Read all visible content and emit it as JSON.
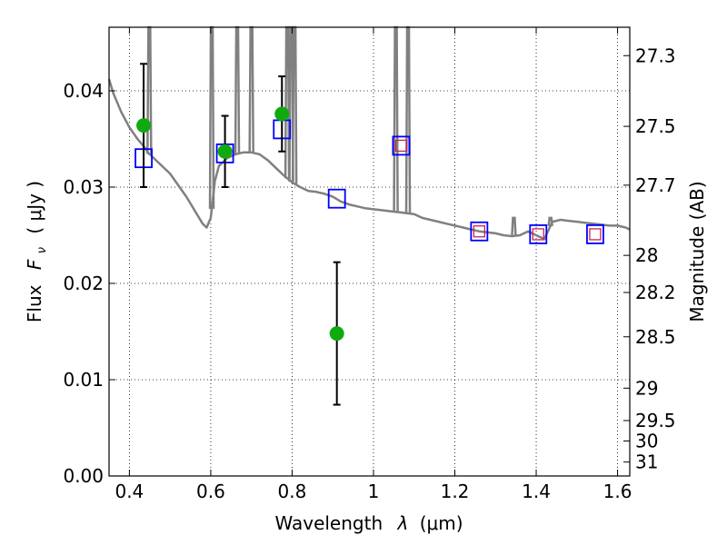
{
  "chart_data": {
    "type": "scatter",
    "xlabel_text": "Wavelength",
    "xlabel_symbol": "λ",
    "xlabel_unit": "(μm)",
    "ylabel_text": "Flux",
    "ylabel_symbol_main": "F",
    "ylabel_symbol_sub": "ν",
    "ylabel_unit": "( μJy )",
    "y2label": "Magnitude (AB)",
    "xlim": [
      0.35,
      1.63
    ],
    "ylim": [
      0.0,
      0.0466
    ],
    "grid": true,
    "xticks": [
      {
        "value": 0.4,
        "label": "0.4"
      },
      {
        "value": 0.6,
        "label": "0.6"
      },
      {
        "value": 0.8,
        "label": "0.8"
      },
      {
        "value": 1.0,
        "label": "1"
      },
      {
        "value": 1.2,
        "label": "1.2"
      },
      {
        "value": 1.4,
        "label": "1.4"
      },
      {
        "value": 1.6,
        "label": "1.6"
      }
    ],
    "yticks": [
      {
        "value": 0.0,
        "label": "0.00"
      },
      {
        "value": 0.01,
        "label": "0.01"
      },
      {
        "value": 0.02,
        "label": "0.02"
      },
      {
        "value": 0.03,
        "label": "0.03"
      },
      {
        "value": 0.04,
        "label": "0.04"
      }
    ],
    "y2ticks": [
      {
        "value": 27.3,
        "label": "27.3"
      },
      {
        "value": 27.5,
        "label": "27.5"
      },
      {
        "value": 27.7,
        "label": "27.7"
      },
      {
        "value": 28.0,
        "label": "28"
      },
      {
        "value": 28.2,
        "label": "28.2"
      },
      {
        "value": 28.5,
        "label": "28.5"
      },
      {
        "value": 29.0,
        "label": "29"
      },
      {
        "value": 29.5,
        "label": "29.5"
      },
      {
        "value": 30.0,
        "label": "30"
      },
      {
        "value": 31.0,
        "label": "31"
      }
    ],
    "colors": {
      "template": "#808080",
      "observed": "#10aa10",
      "model_box": "#0000ff",
      "model_inner": "#cc2255",
      "errorbar": "#000000"
    },
    "series": [
      {
        "kind": "line",
        "points": [
          [
            0.35,
            0.0412
          ],
          [
            0.36,
            0.0398
          ],
          [
            0.38,
            0.0378
          ],
          [
            0.4,
            0.0362
          ],
          [
            0.42,
            0.035
          ],
          [
            0.44,
            0.034
          ],
          [
            0.445,
            0.0336
          ],
          [
            0.45,
            0.0334
          ],
          [
            0.47,
            0.0326
          ],
          [
            0.5,
            0.0314
          ],
          [
            0.52,
            0.0302
          ],
          [
            0.54,
            0.029
          ],
          [
            0.56,
            0.0276
          ],
          [
            0.58,
            0.0262
          ],
          [
            0.59,
            0.0258
          ],
          [
            0.6,
            0.0268
          ],
          [
            0.61,
            0.0306
          ],
          [
            0.62,
            0.0322
          ],
          [
            0.64,
            0.033
          ],
          [
            0.66,
            0.0334
          ],
          [
            0.68,
            0.0336
          ],
          [
            0.7,
            0.0336
          ],
          [
            0.72,
            0.0334
          ],
          [
            0.74,
            0.0328
          ],
          [
            0.76,
            0.032
          ],
          [
            0.78,
            0.0312
          ],
          [
            0.8,
            0.0305
          ],
          [
            0.82,
            0.03
          ],
          [
            0.84,
            0.0296
          ],
          [
            0.86,
            0.0295
          ],
          [
            0.88,
            0.0293
          ],
          [
            0.9,
            0.029
          ],
          [
            0.92,
            0.0285
          ],
          [
            0.94,
            0.0282
          ],
          [
            0.96,
            0.028
          ],
          [
            0.98,
            0.0278
          ],
          [
            1.0,
            0.0277
          ],
          [
            1.02,
            0.0276
          ],
          [
            1.04,
            0.0275
          ],
          [
            1.06,
            0.0274
          ],
          [
            1.08,
            0.0273
          ],
          [
            1.1,
            0.0272
          ],
          [
            1.12,
            0.0268
          ],
          [
            1.14,
            0.0266
          ],
          [
            1.16,
            0.0264
          ],
          [
            1.18,
            0.0262
          ],
          [
            1.2,
            0.026
          ],
          [
            1.22,
            0.0258
          ],
          [
            1.24,
            0.0256
          ],
          [
            1.26,
            0.0254
          ],
          [
            1.28,
            0.0253
          ],
          [
            1.3,
            0.0252
          ],
          [
            1.32,
            0.025
          ],
          [
            1.34,
            0.0249
          ],
          [
            1.36,
            0.025
          ],
          [
            1.38,
            0.0254
          ],
          [
            1.4,
            0.025
          ],
          [
            1.42,
            0.0246
          ],
          [
            1.44,
            0.0264
          ],
          [
            1.46,
            0.0266
          ],
          [
            1.48,
            0.0265
          ],
          [
            1.5,
            0.0264
          ],
          [
            1.52,
            0.0263
          ],
          [
            1.54,
            0.0262
          ],
          [
            1.56,
            0.0261
          ],
          [
            1.58,
            0.026
          ],
          [
            1.6,
            0.026
          ],
          [
            1.62,
            0.0258
          ],
          [
            1.63,
            0.0256
          ]
        ],
        "emission_lines": [
          {
            "x": 0.449,
            "peak": 0.0466
          },
          {
            "x": 0.6025,
            "peak": 0.0466
          },
          {
            "x": 0.665,
            "peak": 0.0466
          },
          {
            "x": 0.7,
            "peak": 0.0466
          },
          {
            "x": 0.788,
            "peak": 0.0466
          },
          {
            "x": 0.798,
            "peak": 0.0466
          },
          {
            "x": 0.806,
            "peak": 0.0466
          },
          {
            "x": 1.055,
            "peak": 0.0466
          },
          {
            "x": 1.085,
            "peak": 0.0466
          },
          {
            "x": 1.345,
            "peak": 0.0268
          },
          {
            "x": 1.435,
            "peak": 0.0268
          }
        ]
      },
      {
        "kind": "model_boxes",
        "points": [
          {
            "x": 0.435,
            "y": 0.033,
            "inner": false
          },
          {
            "x": 0.635,
            "y": 0.0335,
            "inner": false
          },
          {
            "x": 0.775,
            "y": 0.036,
            "inner": false
          },
          {
            "x": 0.91,
            "y": 0.0288,
            "inner": false
          },
          {
            "x": 1.068,
            "y": 0.0343,
            "inner": true
          },
          {
            "x": 1.26,
            "y": 0.0254,
            "inner": true
          },
          {
            "x": 1.405,
            "y": 0.0251,
            "inner": true
          },
          {
            "x": 1.545,
            "y": 0.0251,
            "inner": true
          }
        ]
      },
      {
        "kind": "observed",
        "points": [
          {
            "x": 0.435,
            "y": 0.0364,
            "err": 0.0064
          },
          {
            "x": 0.635,
            "y": 0.0337,
            "err": 0.0037
          },
          {
            "x": 0.775,
            "y": 0.0376,
            "err": 0.0039
          },
          {
            "x": 0.91,
            "y": 0.0148,
            "err": 0.0074
          }
        ]
      }
    ]
  }
}
